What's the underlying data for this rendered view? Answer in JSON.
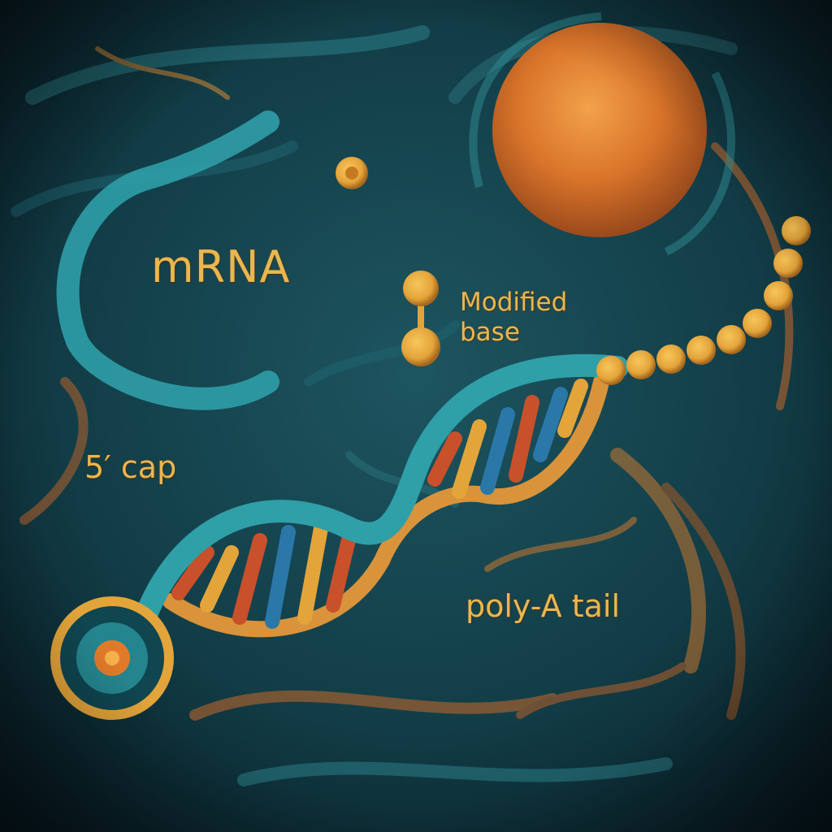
{
  "labels": {
    "mrna": "mRNA",
    "modified_base": "Modified base",
    "five_prime_cap": "5′ cap",
    "poly_a_tail": "poly-A tail"
  },
  "colors": {
    "background": "#123d47",
    "strand": "#2f9fa8",
    "gold": "#e3a43a",
    "orange": "#d9742a",
    "label": "#e9b74f",
    "base_red": "#c8502a",
    "base_blue": "#2a78a8"
  }
}
